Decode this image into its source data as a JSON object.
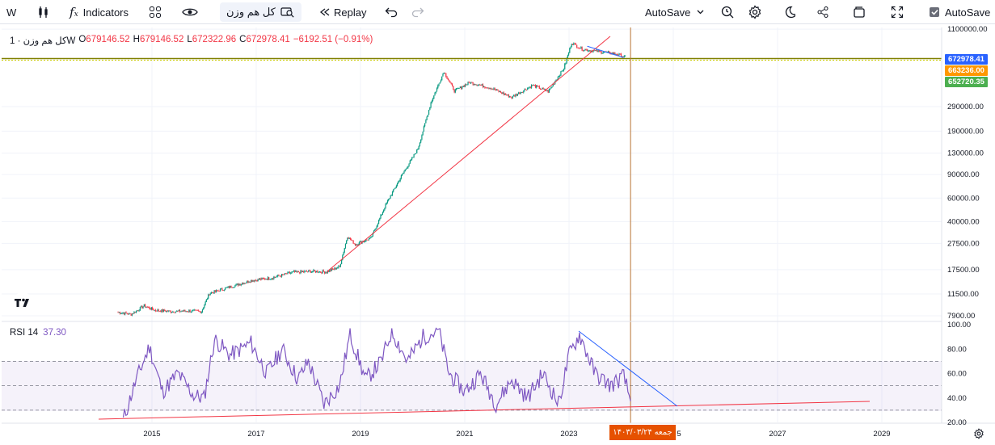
{
  "toolbar": {
    "interval": "W",
    "indicators_label": "Indicators",
    "symbol": "کل هم وزن",
    "replay_label": "Replay",
    "autosave_dropdown": "AutoSave",
    "autosave_checkbox": "AutoSave"
  },
  "legend": {
    "title": "کل هم وزن · 1W",
    "o_key": "O",
    "o_val": "679146.52",
    "h_key": "H",
    "h_val": "679146.52",
    "l_key": "L",
    "l_val": "672322.96",
    "c_key": "C",
    "c_val": "672978.41",
    "change": "−6192.51 (−0.91%)"
  },
  "rsi_legend": {
    "name": "RSI 14",
    "value": "37.30"
  },
  "price_tags": [
    {
      "text": "672978.41",
      "color": "#2962ff"
    },
    {
      "text": "663236.00",
      "color": "#ff9800"
    },
    {
      "text": "652720.35",
      "color": "#4caf50"
    }
  ],
  "date_tag": "جمعه ۱۴۰۳/۰۳/۲۴",
  "colors": {
    "up": "#089981",
    "down": "#f23645",
    "rsi": "#7e57c2",
    "trend": "#f23645",
    "rsi_trend_down": "#2962ff",
    "cursor": "#b87333",
    "h_line": "#808000"
  },
  "chart_data": [
    {
      "type": "candlestick",
      "title": "کل هم وزن · 1W",
      "y_scale": "log",
      "y_ticks": [
        "1100000.00",
        "290000.00",
        "190000.00",
        "130000.00",
        "90000.00",
        "60000.00",
        "40000.00",
        "27500.00",
        "17500.00",
        "11500.00",
        "7900.00"
      ],
      "x_ticks": [
        "2015",
        "2017",
        "2019",
        "2021",
        "2023",
        "5",
        "2027",
        "2029"
      ],
      "series": [
        {
          "name": "کل هم وزن",
          "points": [
            [
              "2014.35",
              8400
            ],
            [
              "2014.6",
              8100
            ],
            [
              "2014.85",
              9400
            ],
            [
              "2015.05",
              8700
            ],
            [
              "2015.4",
              8500
            ],
            [
              "2015.75",
              8600
            ],
            [
              "2015.95",
              8500
            ],
            [
              "2016.1",
              11600
            ],
            [
              "2016.5",
              13000
            ],
            [
              "2016.9",
              14500
            ],
            [
              "2017.3",
              15200
            ],
            [
              "2017.7",
              16700
            ],
            [
              "2018.1",
              17000
            ],
            [
              "2018.35",
              16800
            ],
            [
              "2018.6",
              18400
            ],
            [
              "2018.75",
              31000
            ],
            [
              "2018.9",
              27000
            ],
            [
              "2019.2",
              30000
            ],
            [
              "2019.5",
              55000
            ],
            [
              "2019.8",
              90000
            ],
            [
              "2020.1",
              140000
            ],
            [
              "2020.35",
              310000
            ],
            [
              "2020.6",
              530000
            ],
            [
              "2020.8",
              380000
            ],
            [
              "2021.1",
              440000
            ],
            [
              "2021.5",
              400000
            ],
            [
              "2021.9",
              340000
            ],
            [
              "2022.3",
              420000
            ],
            [
              "2022.6",
              375000
            ],
            [
              "2022.9",
              560000
            ],
            [
              "2023.05",
              870000
            ],
            [
              "2023.25",
              780000
            ],
            [
              "2023.6",
              745000
            ],
            [
              "2023.9",
              720000
            ],
            [
              "2024.1",
              679146
            ]
          ]
        }
      ],
      "horizontal_levels": [
        663236.0
      ],
      "trend_line": {
        "from": [
          "2018.35",
          16800
        ],
        "to": [
          "2024.1",
          1000000
        ]
      }
    },
    {
      "type": "line",
      "title": "RSI 14",
      "y_ticks": [
        "100.00",
        "80.00",
        "60.00",
        "40.00",
        "20.00"
      ],
      "bands": [
        30,
        50,
        70
      ],
      "series": [
        {
          "name": "RSI 14",
          "last_value": 37.3
        }
      ]
    }
  ]
}
